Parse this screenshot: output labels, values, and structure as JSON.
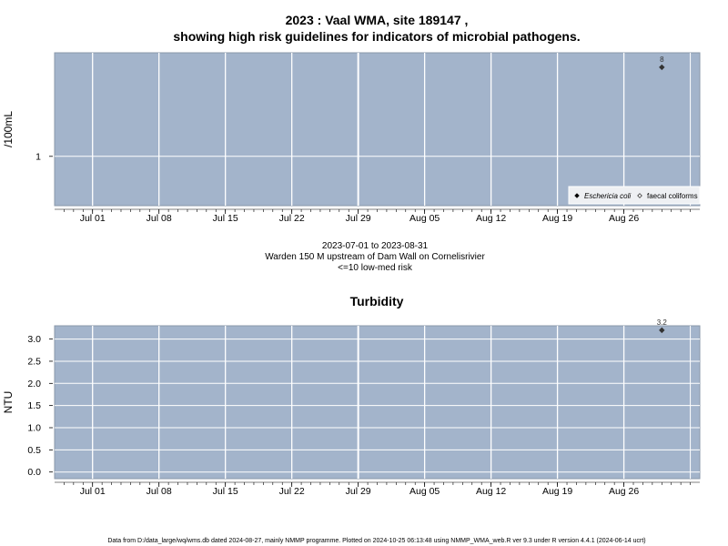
{
  "title_line1": "2023 : Vaal WMA, site 189147 ,",
  "title_line2": "showing high risk guidelines for indicators of microbial pathogens.",
  "subtitle_lines": [
    "2023-07-01 to 2023-08-31",
    "Warden 150 M upstream of Dam Wall on Cornelisrivier",
    "<=10 low-med risk"
  ],
  "footer": "Data from D:/data_large/wq/wms.db dated 2024-08-27, mainly NMMP programme. Plotted on 2024-10-25 06:13:48 using NMMP_WMA_web.R ver 9.3 under R version 4.4.1 (2024-06-14 ucrt)",
  "colors": {
    "panel_bg": "#a3b4cb",
    "grid": "#ffffff",
    "point": "#333333"
  },
  "chart_data": [
    {
      "type": "scatter",
      "title": "",
      "xlabel": "",
      "ylabel": "/100mL",
      "y_scale": "log",
      "x_range": [
        "2023-06-27",
        "2023-09-03"
      ],
      "x_ticks": [
        "Jul 01",
        "Jul 08",
        "Jul 15",
        "Jul 22",
        "Jul 29",
        "Aug 05",
        "Aug 12",
        "Aug 19",
        "Aug 26"
      ],
      "x_tick_dates": [
        "2023-07-01",
        "2023-07-08",
        "2023-07-15",
        "2023-07-22",
        "2023-07-29",
        "2023-08-05",
        "2023-08-12",
        "2023-08-19",
        "2023-08-26"
      ],
      "y_ticks": [
        "1"
      ],
      "grid": true,
      "legend_position": "bottom-right",
      "legend": [
        {
          "label": "Eschericia coli",
          "italic": true,
          "marker": "filled-diamond"
        },
        {
          "label": "faecal coliforms",
          "italic": false,
          "marker": "open-diamond"
        }
      ],
      "series": [
        {
          "name": "Eschericia coli",
          "points": [
            {
              "x": "2023-08-30",
              "y": 8,
              "label": "8"
            }
          ]
        }
      ]
    },
    {
      "type": "scatter",
      "title": "Turbidity",
      "xlabel": "",
      "ylabel": "NTU",
      "ylim": [
        -0.15,
        3.3
      ],
      "x_range": [
        "2023-06-27",
        "2023-09-03"
      ],
      "x_ticks": [
        "Jul 01",
        "Jul 08",
        "Jul 15",
        "Jul 22",
        "Jul 29",
        "Aug 05",
        "Aug 12",
        "Aug 19",
        "Aug 26"
      ],
      "x_tick_dates": [
        "2023-07-01",
        "2023-07-08",
        "2023-07-15",
        "2023-07-22",
        "2023-07-29",
        "2023-08-05",
        "2023-08-12",
        "2023-08-19",
        "2023-08-26"
      ],
      "y_ticks": [
        "0.0",
        "0.5",
        "1.0",
        "1.5",
        "2.0",
        "2.5",
        "3.0"
      ],
      "grid": true,
      "series": [
        {
          "name": "",
          "points": [
            {
              "x": "2023-08-30",
              "y": 3.2,
              "label": "3.2"
            }
          ]
        }
      ]
    }
  ]
}
